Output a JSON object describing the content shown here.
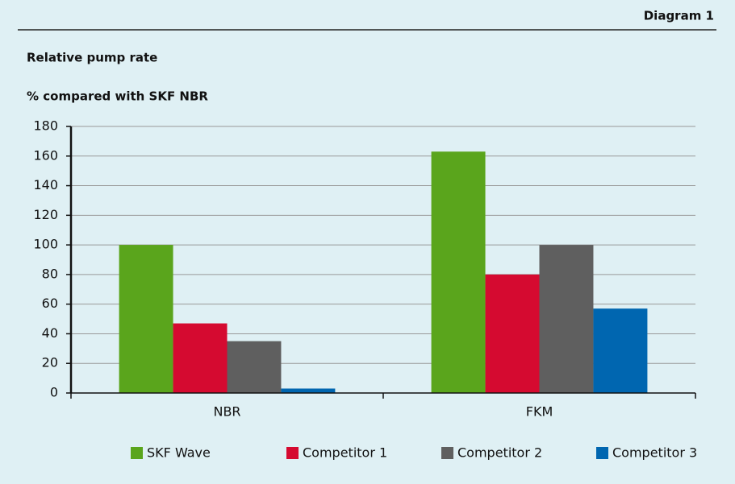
{
  "chart_data": {
    "type": "bar",
    "diagram_label": "Diagram 1",
    "title": "Relative pump rate",
    "subtitle": "% compared with SKF NBR",
    "categories": [
      "NBR",
      "FKM"
    ],
    "series": [
      {
        "name": "SKF Wave",
        "color": "#5aa51c",
        "values": [
          100,
          163
        ]
      },
      {
        "name": "Competitor 1",
        "color": "#d50a30",
        "values": [
          47,
          80
        ]
      },
      {
        "name": "Competitor 2",
        "color": "#5f5f5f",
        "values": [
          35,
          100
        ]
      },
      {
        "name": "Competitor 3",
        "color": "#0066b0",
        "values": [
          3,
          57
        ]
      }
    ],
    "ylim": [
      0,
      180
    ],
    "yticks": [
      0,
      20,
      40,
      60,
      80,
      100,
      120,
      140,
      160,
      180
    ],
    "grid": true,
    "legend": "bottom"
  }
}
